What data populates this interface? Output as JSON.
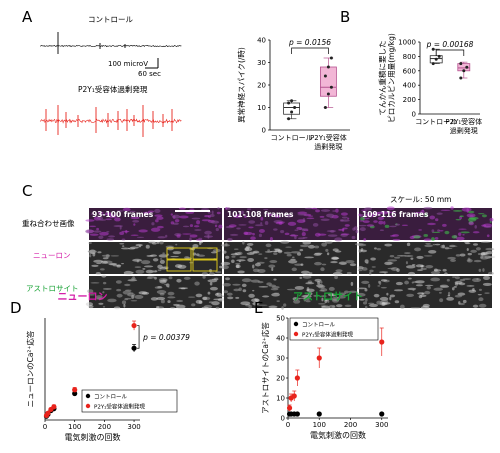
{
  "panels": {
    "A": {
      "letter": "A",
      "trace_control_label": "コントロール",
      "trace_p2y_label": "P2Y₁受容体過剰発現",
      "scale_y": "100 microV",
      "scale_x": "60 sec"
    },
    "B": {
      "letter": "B"
    },
    "C": {
      "letter": "C",
      "scale_label": "スケール: 50 mm",
      "frames": [
        "93-100 frames",
        "101-108 frames",
        "109-116 frames"
      ],
      "rows": [
        "重ね合わせ画像",
        "ニューロン",
        "アストロサイト"
      ]
    },
    "D": {
      "letter": "D"
    },
    "E": {
      "letter": "E"
    }
  },
  "colors": {
    "control": "#000000",
    "p2y": "#e8231c",
    "box_pink": "#f2b6d6",
    "neuron_title": "#d41fa8",
    "astro_title": "#1aa336"
  },
  "chart_data": [
    {
      "id": "A-box",
      "type": "box",
      "ylabel": "異常神経スパイク(/時)",
      "ylim": [
        0,
        40
      ],
      "yticks": [
        0,
        10,
        20,
        30,
        40
      ],
      "categories": [
        "コントロール",
        "P2Y₁受容体過剰発現"
      ],
      "boxes": [
        {
          "q1": 7,
          "median": 10,
          "q3": 12,
          "min": 5,
          "max": 13,
          "points": [
            5,
            8,
            10,
            12,
            13
          ]
        },
        {
          "q1": 15,
          "median": 19,
          "q3": 28,
          "min": 10,
          "max": 32,
          "points": [
            10,
            16,
            19,
            24,
            28,
            32
          ]
        }
      ],
      "annotation": "p = 0.0156"
    },
    {
      "id": "B-box",
      "type": "box",
      "ylabel": "てんかん重積に要した\nピロカルピン用量(mg/kg)",
      "ylim": [
        0,
        1000
      ],
      "yticks": [
        0,
        200,
        400,
        600,
        800,
        1000
      ],
      "categories": [
        "コントロール",
        "P2Y₁受容体過剰発現"
      ],
      "boxes": [
        {
          "q1": 710,
          "median": 770,
          "q3": 810,
          "min": 700,
          "max": 900,
          "points": [
            700,
            760,
            800,
            900
          ]
        },
        {
          "q1": 600,
          "median": 640,
          "q3": 700,
          "min": 500,
          "max": 720,
          "points": [
            500,
            600,
            650,
            700
          ]
        }
      ],
      "annotation": "p = 0.00168"
    },
    {
      "id": "D-scatter",
      "type": "scatter",
      "title": "ニューロン",
      "xlabel": "電気刺激の回数",
      "ylabel": "ニューロンのCa²⁺応答",
      "xlim": [
        0,
        320
      ],
      "ylim": [
        0,
        2.7
      ],
      "xticks": [
        0,
        100,
        200,
        300
      ],
      "series": [
        {
          "name": "コントロール",
          "x": [
            5,
            10,
            20,
            30,
            100,
            300
          ],
          "y": [
            0.1,
            0.15,
            0.25,
            0.3,
            0.7,
            1.9
          ],
          "err": [
            0.03,
            0.03,
            0.04,
            0.05,
            0.06,
            0.1
          ]
        },
        {
          "name": "P2Y₁受容体過剰発現",
          "x": [
            5,
            10,
            20,
            30,
            100,
            300
          ],
          "y": [
            0.12,
            0.18,
            0.28,
            0.35,
            0.8,
            2.5
          ],
          "err": [
            0.03,
            0.03,
            0.04,
            0.05,
            0.06,
            0.12
          ]
        }
      ],
      "annotation": "p = 0.00379"
    },
    {
      "id": "E-scatter",
      "type": "scatter",
      "title": "アストロサイト",
      "xlabel": "電気刺激の回数",
      "ylabel": "アストロサイトのCa²⁺応答",
      "xlim": [
        0,
        320
      ],
      "ylim": [
        0,
        50
      ],
      "xticks": [
        0,
        100,
        200,
        300
      ],
      "yticks": [
        0,
        10,
        20,
        30,
        40,
        50
      ],
      "series": [
        {
          "name": "コントロール",
          "x": [
            5,
            10,
            20,
            30,
            100,
            300
          ],
          "y": [
            2,
            2,
            2,
            2,
            2,
            2
          ],
          "err": [
            0.5,
            0.5,
            0.5,
            0.5,
            0.5,
            0.5
          ]
        },
        {
          "name": "P2Y₁受容体過剰発現",
          "x": [
            5,
            10,
            20,
            30,
            100,
            300
          ],
          "y": [
            5,
            10,
            11,
            20,
            30,
            38
          ],
          "err": [
            1.5,
            2,
            2.5,
            4,
            5,
            7
          ]
        }
      ]
    }
  ]
}
